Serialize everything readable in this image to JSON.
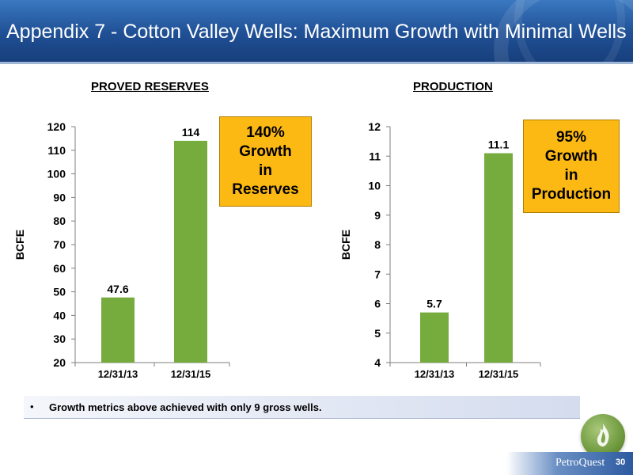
{
  "header": {
    "title": "Appendix 7 - Cotton Valley Wells: Maximum Growth with Minimal Wells"
  },
  "chart_data": [
    {
      "type": "bar",
      "title": "PROVED RESERVES",
      "ylabel": "BCFE",
      "categories": [
        "12/31/13",
        "12/31/15"
      ],
      "values": [
        47.6,
        114
      ],
      "data_labels": [
        "47.6",
        "114"
      ],
      "ylim": [
        20,
        120
      ],
      "yticks": [
        20,
        30,
        40,
        50,
        60,
        70,
        80,
        90,
        100,
        110,
        120
      ],
      "bar_color": "#76ab3e",
      "grid": false,
      "callout": [
        "140%",
        "Growth",
        "in",
        "Reserves"
      ]
    },
    {
      "type": "bar",
      "title": "PRODUCTION",
      "ylabel": "BCFE",
      "categories": [
        "12/31/13",
        "12/31/15"
      ],
      "values": [
        5.7,
        11.1
      ],
      "data_labels": [
        "5.7",
        "11.1"
      ],
      "ylim": [
        4,
        12
      ],
      "yticks": [
        4,
        5,
        6,
        7,
        8,
        9,
        10,
        11,
        12
      ],
      "bar_color": "#76ab3e",
      "grid": false,
      "callout": [
        "95%",
        "Growth",
        "in",
        "Production"
      ]
    }
  ],
  "note": {
    "bullet": "•",
    "text": "Growth metrics above achieved with only 9 gross wells."
  },
  "footer": {
    "logo_text": "PetroQuest",
    "page_number": "30"
  },
  "colors": {
    "header": "#1f4f94",
    "callout": "#fdb913",
    "bars": "#76ab3e"
  }
}
